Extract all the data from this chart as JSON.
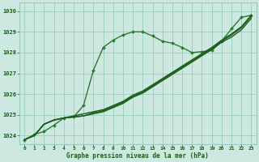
{
  "bg_color": "#cce8e0",
  "grid_color": "#99ccbb",
  "line_color_dark": "#1a5c1a",
  "xlabel": "Graphe pression niveau de la mer (hPa)",
  "xlabel_color": "#1a5c1a",
  "ylabel_ticks": [
    1024,
    1025,
    1026,
    1027,
    1028,
    1029,
    1030
  ],
  "xlim": [
    -0.5,
    23.5
  ],
  "ylim": [
    1023.6,
    1030.4
  ],
  "series": [
    {
      "x": [
        0,
        1,
        2,
        3,
        4,
        5,
        6,
        7,
        8,
        9,
        10,
        11,
        12,
        13,
        14,
        15,
        16,
        17,
        18,
        19,
        20,
        21,
        22,
        23
      ],
      "y": [
        1023.8,
        1024.05,
        1024.2,
        1024.5,
        1024.85,
        1024.9,
        1025.45,
        1027.15,
        1028.25,
        1028.6,
        1028.85,
        1029.0,
        1029.0,
        1028.8,
        1028.55,
        1028.45,
        1028.25,
        1028.0,
        1028.05,
        1028.1,
        1028.55,
        1029.15,
        1029.7,
        1029.8
      ],
      "color": "#2d7a2d",
      "lw": 1.0,
      "marker": "D",
      "ms": 2.0
    },
    {
      "x": [
        0,
        1,
        2,
        3,
        4,
        5,
        6,
        7,
        8,
        9,
        10,
        11,
        12,
        13,
        14,
        15,
        16,
        17,
        18,
        19,
        20,
        21,
        22,
        23
      ],
      "y": [
        1023.8,
        1024.0,
        1024.55,
        1024.75,
        1024.85,
        1024.9,
        1024.95,
        1025.05,
        1025.15,
        1025.35,
        1025.55,
        1025.85,
        1026.05,
        1026.35,
        1026.65,
        1026.95,
        1027.25,
        1027.55,
        1027.85,
        1028.15,
        1028.5,
        1028.75,
        1029.1,
        1029.65
      ],
      "color": "#1a5c1a",
      "lw": 1.0,
      "marker": null
    },
    {
      "x": [
        0,
        1,
        2,
        3,
        4,
        5,
        6,
        7,
        8,
        9,
        10,
        11,
        12,
        13,
        14,
        15,
        16,
        17,
        18,
        19,
        20,
        21,
        22,
        23
      ],
      "y": [
        1023.8,
        1024.0,
        1024.55,
        1024.75,
        1024.85,
        1024.9,
        1024.95,
        1025.1,
        1025.2,
        1025.4,
        1025.6,
        1025.9,
        1026.1,
        1026.4,
        1026.7,
        1027.0,
        1027.3,
        1027.6,
        1027.9,
        1028.2,
        1028.55,
        1028.85,
        1029.2,
        1029.75
      ],
      "color": "#1a5c1a",
      "lw": 1.0,
      "marker": null
    },
    {
      "x": [
        0,
        1,
        2,
        3,
        4,
        5,
        6,
        7,
        8,
        9,
        10,
        11,
        12,
        13,
        14,
        15,
        16,
        17,
        18,
        19,
        20,
        21,
        22,
        23
      ],
      "y": [
        1023.8,
        1024.0,
        1024.55,
        1024.75,
        1024.85,
        1024.95,
        1025.05,
        1025.15,
        1025.25,
        1025.45,
        1025.65,
        1025.95,
        1026.15,
        1026.45,
        1026.75,
        1027.05,
        1027.35,
        1027.65,
        1027.95,
        1028.25,
        1028.6,
        1028.9,
        1029.25,
        1029.8
      ],
      "color": "#1a5c1a",
      "lw": 1.0,
      "marker": null
    }
  ],
  "xtick_labels": [
    "0",
    "1",
    "2",
    "3",
    "4",
    "5",
    "6",
    "7",
    "8",
    "9",
    "10",
    "11",
    "12",
    "13",
    "14",
    "15",
    "16",
    "17",
    "18",
    "19",
    "20",
    "21",
    "22",
    "23"
  ]
}
